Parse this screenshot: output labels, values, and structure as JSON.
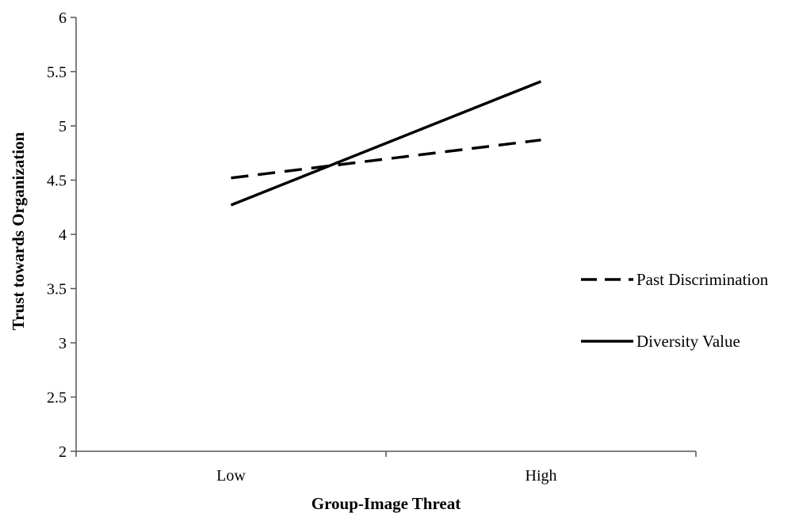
{
  "chart_data": {
    "type": "line",
    "title": "",
    "xlabel": "Group-Image Threat",
    "ylabel": "Trust towards Organization",
    "categories": [
      "Low",
      "High"
    ],
    "ylim": [
      2,
      6
    ],
    "yticks": [
      "2",
      "2.5",
      "3",
      "3.5",
      "4",
      "4.5",
      "5",
      "5.5",
      "6"
    ],
    "grid": false,
    "legend_position": "right",
    "series": [
      {
        "name": "Past Discrimination",
        "values": [
          4.52,
          4.87
        ],
        "style": "dashed",
        "color": "#000000"
      },
      {
        "name": "Diversity Value",
        "values": [
          4.27,
          5.41
        ],
        "style": "solid",
        "color": "#000000"
      }
    ]
  }
}
